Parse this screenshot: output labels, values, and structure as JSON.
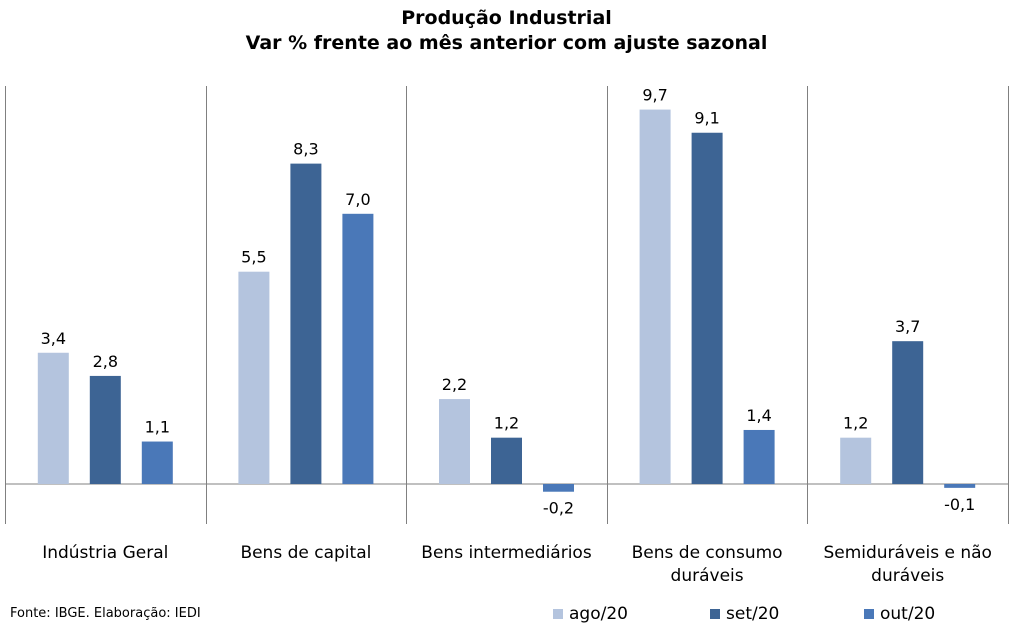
{
  "chart_data": {
    "type": "bar",
    "title": "Produção Industrial",
    "subtitle": "Var % frente ao mês anterior com ajuste sazonal",
    "categories": [
      [
        "Indústria Geral"
      ],
      [
        "Bens de capital"
      ],
      [
        "Bens intermediários"
      ],
      [
        "Bens de consumo",
        "duráveis"
      ],
      [
        "Semiduráveis e não",
        "duráveis"
      ]
    ],
    "series": [
      {
        "name": "ago/20",
        "color": "#b4c4de",
        "values": [
          3.4,
          5.5,
          2.2,
          9.7,
          1.2
        ],
        "labels": [
          "3,4",
          "5,5",
          "2,2",
          "9,7",
          "1,2"
        ]
      },
      {
        "name": "set/20",
        "color": "#3d6494",
        "values": [
          2.8,
          8.3,
          1.2,
          9.1,
          3.7
        ],
        "labels": [
          "2,8",
          "8,3",
          "1,2",
          "9,1",
          "3,7"
        ]
      },
      {
        "name": "out/20",
        "color": "#4a78b8",
        "values": [
          1.1,
          7.0,
          -0.2,
          1.4,
          -0.1
        ],
        "labels": [
          "1,1",
          "7,0",
          "-0,2",
          "1,4",
          "-0,1"
        ]
      }
    ],
    "grid": false,
    "legend_position": "bottom-right"
  },
  "source": "Fonte: IBGE. Elaboração: IEDI"
}
